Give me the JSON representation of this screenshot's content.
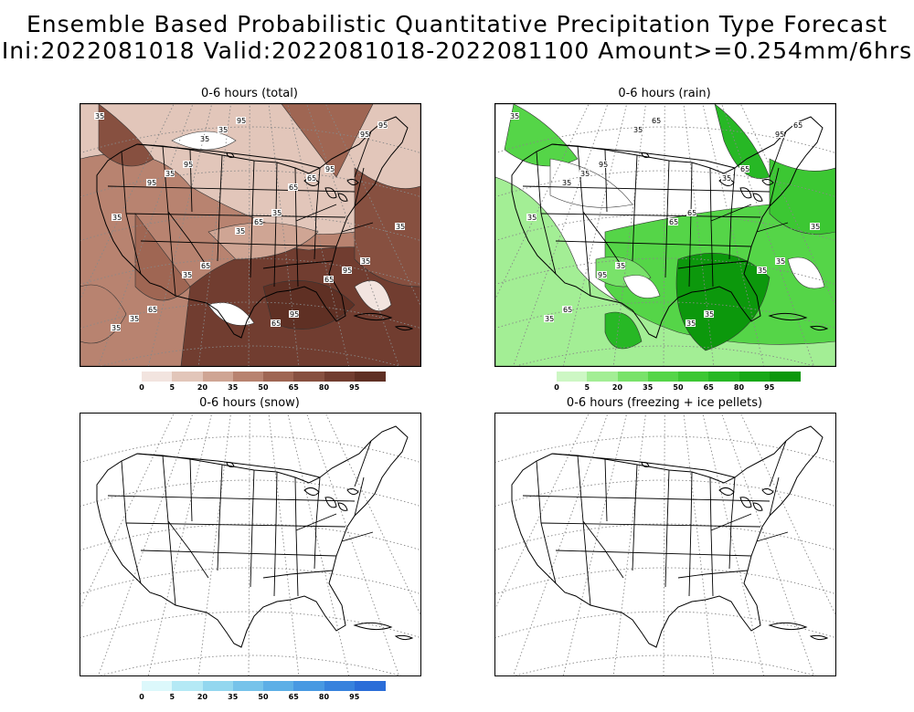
{
  "title": {
    "line1": "Ensemble Based Probabilistic Quantitative Precipitation Type Forecast",
    "line2": "Ini:2022081018 Valid:2022081018-2022081100 Amount>=0.254mm/6hrs"
  },
  "panels": [
    {
      "id": "total",
      "title": "0-6 hours (total)",
      "colors": [
        "#ffffff",
        "#f2e4df",
        "#e2c6ba",
        "#cfa594",
        "#b88370",
        "#9f6653",
        "#875040",
        "#713d30",
        "#5f3024"
      ]
    },
    {
      "id": "rain",
      "title": "0-6 hours (rain)",
      "colors": [
        "#ffffff",
        "#cdf7c4",
        "#a3ee95",
        "#79e26a",
        "#55d548",
        "#3cc733",
        "#27b825",
        "#17a817",
        "#0c980c"
      ]
    },
    {
      "id": "snow",
      "title": "0-6 hours (snow)",
      "colors": [
        "#ffffff",
        "#dcf8fb",
        "#b4e9f5",
        "#93d7ef",
        "#76c3ea",
        "#5dafe6",
        "#4899e2",
        "#3782dd",
        "#2a6dd8"
      ]
    },
    {
      "id": "frz",
      "title": "0-6 hours (freezing + ice pellets)"
    }
  ],
  "colorbar_labels": [
    "0",
    "5",
    "20",
    "35",
    "50",
    "65",
    "80",
    "95"
  ],
  "contour_labels_total": [
    "35",
    "95",
    "35",
    "35",
    "65",
    "95",
    "95",
    "35",
    "65",
    "95",
    "95",
    "35",
    "65",
    "95",
    "35",
    "35",
    "65",
    "35",
    "35",
    "65",
    "95",
    "95",
    "35",
    "65",
    "35",
    "35",
    "65"
  ],
  "contour_labels_rain": [
    "35",
    "95",
    "65",
    "35",
    "65",
    "65",
    "65",
    "35",
    "35",
    "35",
    "65",
    "35",
    "65",
    "35",
    "35",
    "35",
    "35",
    "35",
    "95",
    "35",
    "95",
    "35"
  ],
  "icons": {
    "map": "us-map-icon"
  }
}
